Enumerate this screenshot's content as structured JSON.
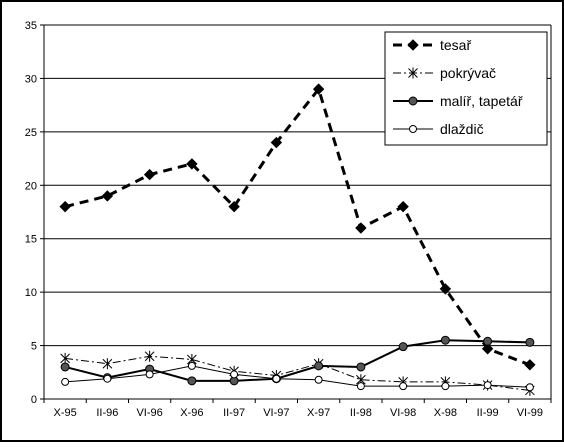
{
  "chart_data": {
    "type": "line",
    "categories": [
      "X-95",
      "II-96",
      "VI-96",
      "X-96",
      "II-97",
      "VI-97",
      "X-97",
      "II-98",
      "VI-98",
      "X-98",
      "II-99",
      "VI-99"
    ],
    "ylim": [
      0,
      35
    ],
    "yticks": [
      0,
      5,
      10,
      15,
      20,
      25,
      30,
      35
    ],
    "grid": "horizontal",
    "legend": "top-right",
    "series": [
      {
        "name": "tesař",
        "style": "dashed-diamond",
        "color": "#000000",
        "values": [
          18,
          19,
          21,
          22,
          18,
          24,
          29,
          16,
          18,
          10.3,
          4.7,
          3.2
        ]
      },
      {
        "name": "pokrývač",
        "style": "dashdot-star",
        "color": "#000000",
        "values": [
          3.8,
          3.3,
          4.0,
          3.7,
          2.6,
          2.2,
          3.3,
          1.8,
          1.6,
          1.6,
          1.3,
          0.8
        ]
      },
      {
        "name": "malíř, tapetář",
        "style": "solid-filled-circle",
        "color": "#000000",
        "values": [
          3.0,
          2.0,
          2.8,
          1.7,
          1.7,
          1.9,
          3.1,
          3.0,
          4.9,
          5.5,
          5.4,
          5.3
        ]
      },
      {
        "name": "dlaždič",
        "style": "thin-open-circle",
        "color": "#000000",
        "values": [
          1.6,
          1.9,
          2.3,
          3.1,
          2.3,
          1.9,
          1.8,
          1.2,
          1.2,
          1.2,
          1.3,
          1.1
        ]
      }
    ]
  }
}
